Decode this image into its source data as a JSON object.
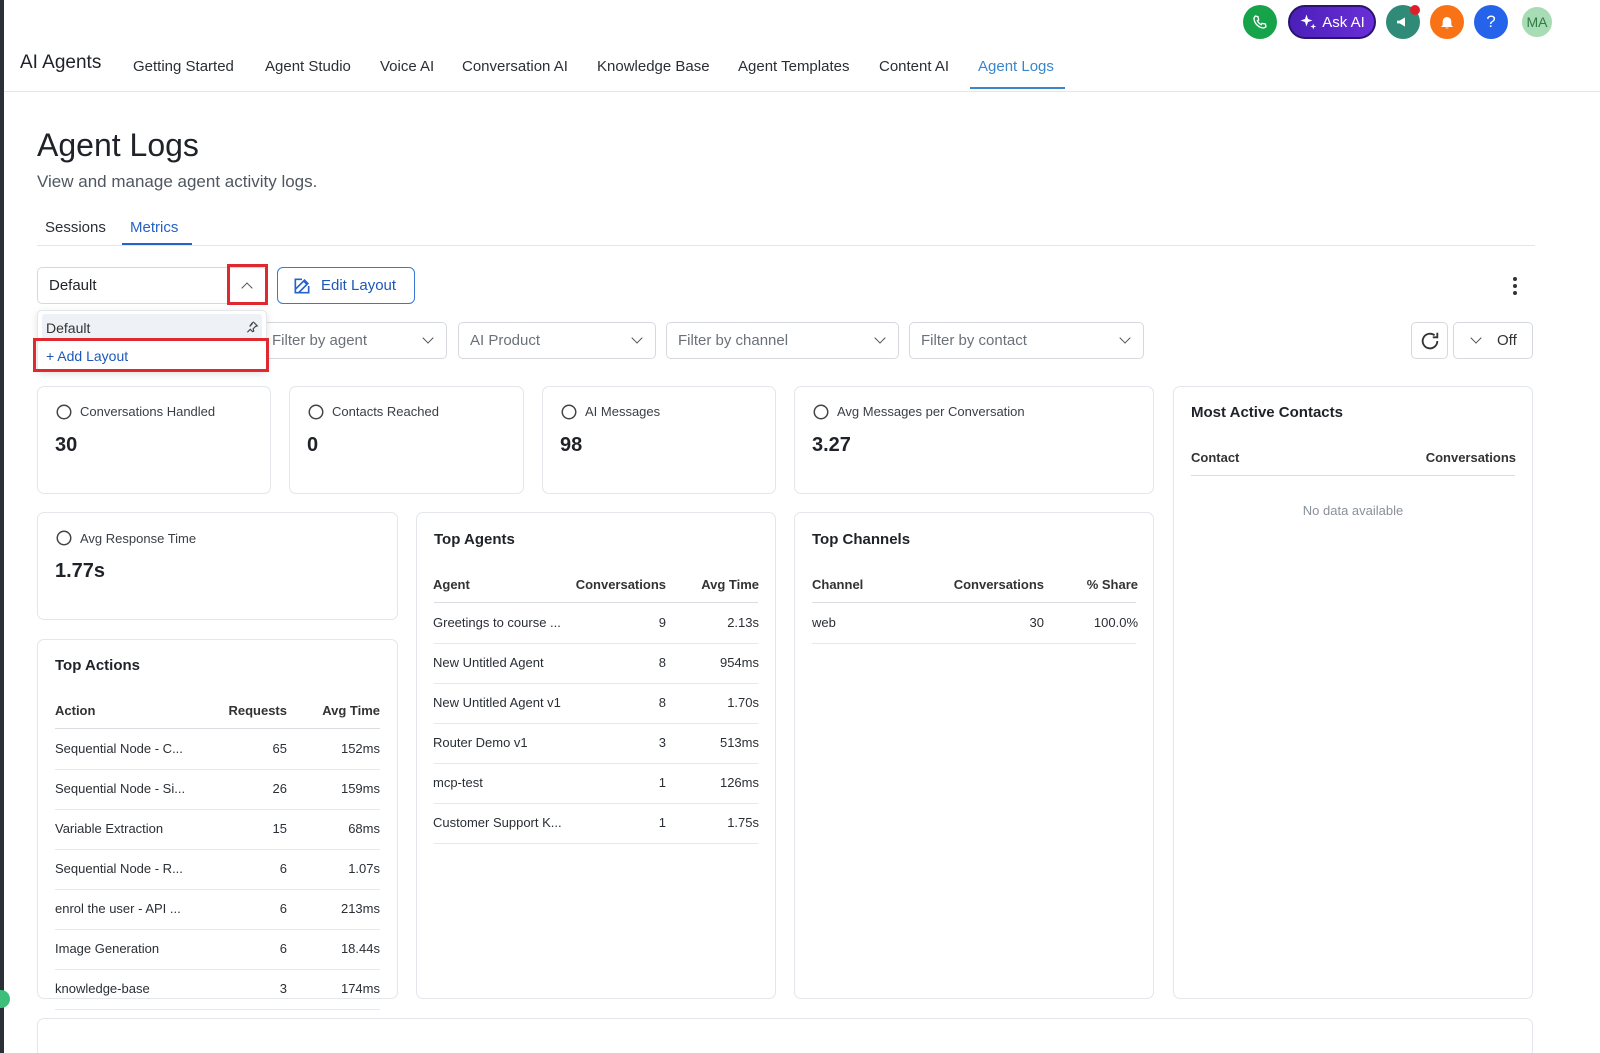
{
  "header": {
    "app_title": "AI Agents",
    "nav": [
      "Getting Started",
      "Agent Studio",
      "Voice AI",
      "Conversation AI",
      "Knowledge Base",
      "Agent Templates",
      "Content AI",
      "Agent Logs"
    ],
    "ask_ai": "Ask AI",
    "help": "?",
    "avatar": "MA"
  },
  "page": {
    "title": "Agent Logs",
    "subtitle": "View and manage agent activity logs.",
    "tabs": [
      "Sessions",
      "Metrics"
    ]
  },
  "toolbar": {
    "layout": "Default",
    "edit_layout": "Edit Layout",
    "layout_menu": [
      "Default",
      "+ Add Layout"
    ],
    "filters": [
      "Filter by agent",
      "AI Product",
      "Filter by channel",
      "Filter by contact"
    ],
    "auto_refresh": "Off"
  },
  "stats": [
    {
      "label": "Conversations Handled",
      "value": 30
    },
    {
      "label": "Contacts Reached",
      "value": 0
    },
    {
      "label": "AI Messages",
      "value": 98
    },
    {
      "label": "Avg Messages per Conversation",
      "value": 3.27
    },
    {
      "label": "Avg Response Time",
      "value": "1.77s"
    }
  ],
  "top_actions": {
    "title": "Top Actions",
    "columns": [
      "Action",
      "Requests",
      "Avg Time"
    ],
    "rows": [
      [
        "Sequential Node - C...",
        65,
        "152ms"
      ],
      [
        "Sequential Node - Si...",
        26,
        "159ms"
      ],
      [
        "Variable Extraction",
        15,
        "68ms"
      ],
      [
        "Sequential Node - R...",
        6,
        "1.07s"
      ],
      [
        "enrol the user - API ...",
        6,
        "213ms"
      ],
      [
        "Image Generation",
        6,
        "18.44s"
      ],
      [
        "knowledge-base",
        3,
        "174ms"
      ]
    ]
  },
  "top_agents": {
    "title": "Top Agents",
    "columns": [
      "Agent",
      "Conversations",
      "Avg Time"
    ],
    "rows": [
      [
        "Greetings to course ...",
        9,
        "2.13s"
      ],
      [
        "New Untitled Agent",
        8,
        "954ms"
      ],
      [
        "New Untitled Agent v1",
        8,
        "1.70s"
      ],
      [
        "Router Demo v1",
        3,
        "513ms"
      ],
      [
        "mcp-test",
        1,
        "126ms"
      ],
      [
        "Customer Support K...",
        1,
        "1.75s"
      ]
    ]
  },
  "top_channels": {
    "title": "Top Channels",
    "columns": [
      "Channel",
      "Conversations",
      "% Share"
    ],
    "rows": [
      [
        "web",
        30,
        "100.0%"
      ]
    ]
  },
  "most_active_contacts": {
    "title": "Most Active Contacts",
    "columns": [
      "Contact",
      "Conversations"
    ],
    "empty": "No data available"
  }
}
